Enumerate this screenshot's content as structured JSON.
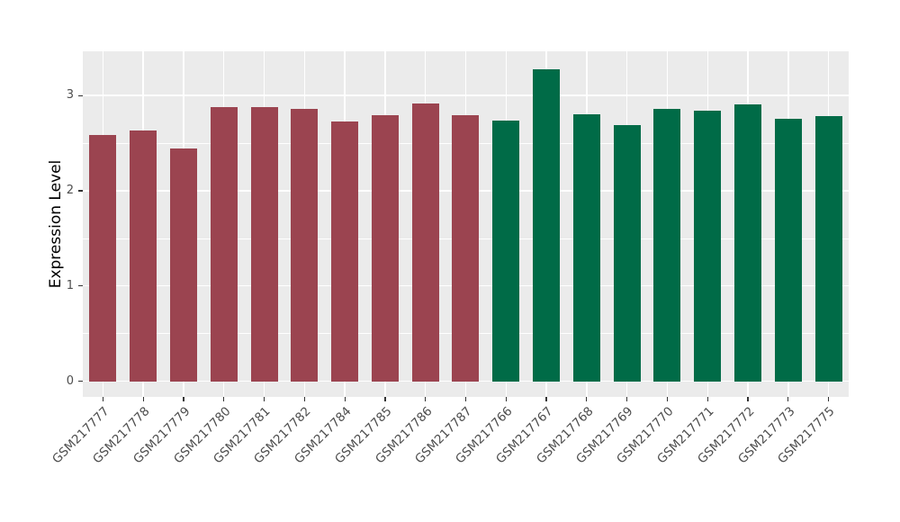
{
  "chart_data": {
    "type": "bar",
    "title": "",
    "xlabel": "",
    "ylabel": "Expression Level",
    "ylim": [
      -0.165,
      3.465
    ],
    "yticks": [
      0,
      1,
      2,
      3
    ],
    "yminorticks": [
      0.5,
      1.5,
      2.5
    ],
    "grid": "on",
    "legend_position": "none",
    "categories": [
      "GSM217777",
      "GSM217778",
      "GSM217779",
      "GSM217780",
      "GSM217781",
      "GSM217782",
      "GSM217784",
      "GSM217785",
      "GSM217786",
      "GSM217787",
      "GSM217766",
      "GSM217767",
      "GSM217768",
      "GSM217769",
      "GSM217770",
      "GSM217771",
      "GSM217772",
      "GSM217773",
      "GSM217775"
    ],
    "values": [
      2.59,
      2.63,
      2.44,
      2.88,
      2.88,
      2.86,
      2.73,
      2.79,
      2.92,
      2.79,
      2.74,
      3.28,
      2.8,
      2.69,
      2.86,
      2.84,
      2.91,
      2.76,
      2.78
    ],
    "bar_group_index": [
      0,
      0,
      0,
      0,
      0,
      0,
      0,
      0,
      0,
      0,
      1,
      1,
      1,
      1,
      1,
      1,
      1,
      1,
      1
    ],
    "group_colors": [
      "#9B4450",
      "#006B47"
    ],
    "style": {
      "panel_background": "#EBEBEB",
      "gridline_color": "#FFFFFF",
      "axis_text_color": "#4D4D4D",
      "tick_mark_color": "#333333",
      "bar_width_fraction": 0.67
    }
  }
}
